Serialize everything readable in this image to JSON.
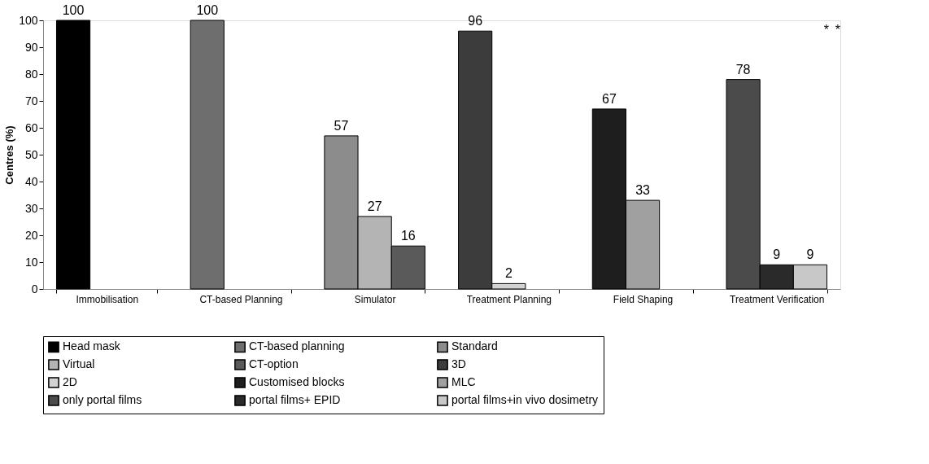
{
  "chart_data": {
    "type": "bar",
    "ylabel": "Centres (%)",
    "categories": [
      "Immobilisation",
      "CT-based Planning",
      "Simulator",
      "Treatment Planning",
      "Field Shaping",
      "Treatment Verification"
    ],
    "series": [
      {
        "name": "Head mask",
        "color": "#000000",
        "values": [
          100,
          null,
          null,
          null,
          null,
          null
        ]
      },
      {
        "name": "CT-based planning",
        "color": "#6e6e6e",
        "values": [
          null,
          100,
          null,
          null,
          null,
          null
        ]
      },
      {
        "name": "Standard",
        "color": "#8c8c8c",
        "values": [
          null,
          null,
          57,
          null,
          null,
          null
        ]
      },
      {
        "name": "Virtual",
        "color": "#b4b4b4",
        "values": [
          null,
          null,
          27,
          null,
          null,
          null
        ]
      },
      {
        "name": "CT-option",
        "color": "#5a5a5a",
        "values": [
          null,
          null,
          16,
          null,
          null,
          null
        ]
      },
      {
        "name": "3D",
        "color": "#3c3c3c",
        "values": [
          null,
          null,
          null,
          96,
          null,
          null
        ]
      },
      {
        "name": "2D",
        "color": "#d2d2d2",
        "values": [
          null,
          null,
          null,
          2,
          null,
          null
        ]
      },
      {
        "name": "Customised blocks",
        "color": "#1e1e1e",
        "values": [
          null,
          null,
          null,
          null,
          67,
          null
        ]
      },
      {
        "name": "MLC",
        "color": "#a0a0a0",
        "values": [
          null,
          null,
          null,
          null,
          33,
          null
        ]
      },
      {
        "name": "only portal films",
        "color": "#4b4b4b",
        "values": [
          null,
          null,
          null,
          null,
          null,
          78
        ]
      },
      {
        "name": "portal films+ EPID",
        "color": "#2a2a2a",
        "values": [
          null,
          null,
          null,
          null,
          null,
          9
        ]
      },
      {
        "name": "portal films+in vivo dosimetry",
        "color": "#c8c8c8",
        "values": [
          null,
          null,
          null,
          null,
          null,
          9
        ]
      }
    ],
    "ylim": [
      0,
      100
    ],
    "yticks": [
      0,
      10,
      20,
      30,
      40,
      50,
      60,
      70,
      80,
      90,
      100
    ],
    "grid": false,
    "legend": "bottom",
    "data_labels": true,
    "annotations": [
      "*",
      "*"
    ]
  }
}
